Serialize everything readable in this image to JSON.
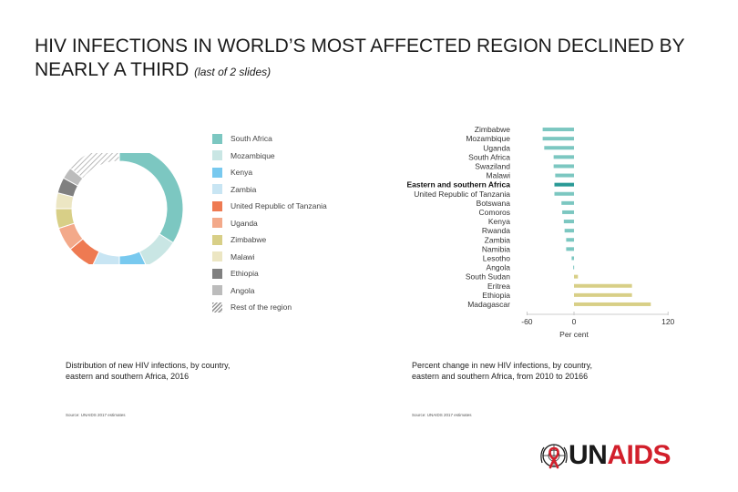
{
  "title": {
    "main": "HIV INFECTIONS IN WORLD’S MOST AFFECTED REGION DECLINED BY NEARLY A THIRD",
    "sub": "(last of 2 slides)"
  },
  "chart_data": [
    {
      "type": "pie",
      "variant": "donut",
      "title": "Distribution of new HIV infections, by country, eastern and southern Africa, 2016",
      "categories": [
        "South Africa",
        "Mozambique",
        "Kenya",
        "Zambia",
        "United Republic of Tanzania",
        "Uganda",
        "Zimbabwe",
        "Malawi",
        "Ethiopia",
        "Angola",
        "Rest of the region"
      ],
      "values": [
        34,
        9,
        7,
        7,
        7,
        6,
        5,
        4,
        4,
        3,
        14
      ],
      "colors": [
        "#7cc7c1",
        "#c9e6e4",
        "#78c9ef",
        "#c8e5f3",
        "#ee7a52",
        "#f3a98a",
        "#d8cf87",
        "#ece6c3",
        "#808080",
        "#bcbcbc",
        "#d0d0d0"
      ]
    },
    {
      "type": "bar",
      "orientation": "horizontal",
      "title": "Percent change in new HIV infections, by country, eastern and southern Africa, from 2010 to 20166",
      "categories": [
        "Zimbabwe",
        "Mozambique",
        "Uganda",
        "South Africa",
        "Swaziland",
        "Malawi",
        "Eastern and southern Africa",
        "United Republic of Tanzania",
        "Botswana",
        "Comoros",
        "Kenya",
        "Rwanda",
        "Zambia",
        "Namibia",
        "Lesotho",
        "Angola",
        "South Sudan",
        "Eritrea",
        "Ethiopia",
        "Madagascar"
      ],
      "values": [
        -40,
        -40,
        -38,
        -26,
        -26,
        -24,
        -25,
        -25,
        -16,
        -15,
        -13,
        -12,
        -10,
        -10,
        -3,
        -1,
        5,
        74,
        74,
        98
      ],
      "highlight": "Eastern and southern Africa",
      "colors": {
        "decrease": "#7cc7c1",
        "increase": "#d8cf87",
        "region": "#2a9a96"
      },
      "xlim": [
        -60,
        120
      ],
      "xticks": [
        "-60",
        "0",
        "120"
      ],
      "xlabel": "Per cent"
    }
  ],
  "captions": {
    "left": "Distribution of new HIV infections, by country, eastern and southern Africa, 2016",
    "right": "Percent change in new HIV infections, by country, eastern and southern Africa, from 2010 to 20166"
  },
  "source": {
    "left": "Source: UNAIDS 2017 estimates",
    "right": "Source: UNAIDS 2017 estimates"
  },
  "logo": {
    "prefix": "UN",
    "suffix": "AIDS",
    "icon": "un-emblem-ribbon-icon"
  }
}
